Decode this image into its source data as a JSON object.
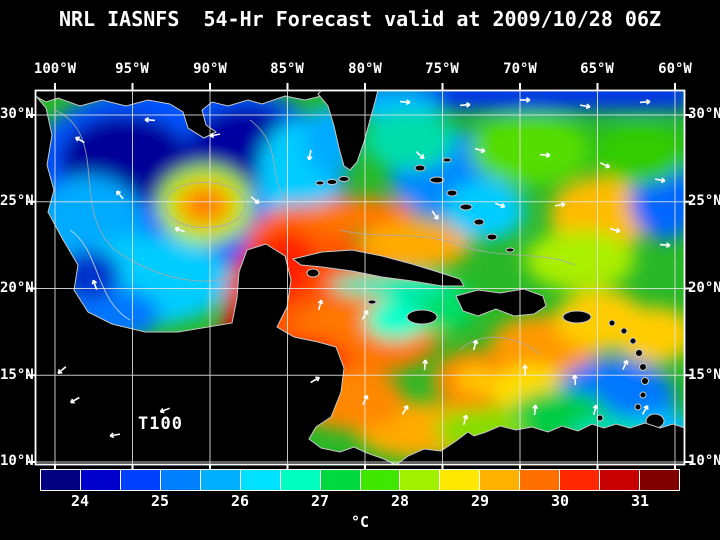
{
  "title": "NRL IASNFS  54-Hr Forecast valid at 2009/10/28 06Z",
  "map": {
    "field_label": "T100",
    "lon_ticks": [
      "100°W",
      "95°W",
      "90°W",
      "85°W",
      "80°W",
      "75°W",
      "70°W",
      "65°W",
      "60°W"
    ],
    "lat_ticks": [
      "30°N",
      "25°N",
      "20°N",
      "15°N",
      "10°N"
    ]
  },
  "colorbar": {
    "unit": "°C",
    "labels": [
      "24",
      "25",
      "26",
      "27",
      "28",
      "29",
      "30",
      "31"
    ],
    "colors": [
      "#000080",
      "#0000cd",
      "#0040ff",
      "#0080ff",
      "#00b0ff",
      "#00e0ff",
      "#00ffc0",
      "#00d840",
      "#40e800",
      "#a0f000",
      "#ffe800",
      "#ffb000",
      "#ff7000",
      "#ff2800",
      "#c80000",
      "#800000"
    ]
  }
}
